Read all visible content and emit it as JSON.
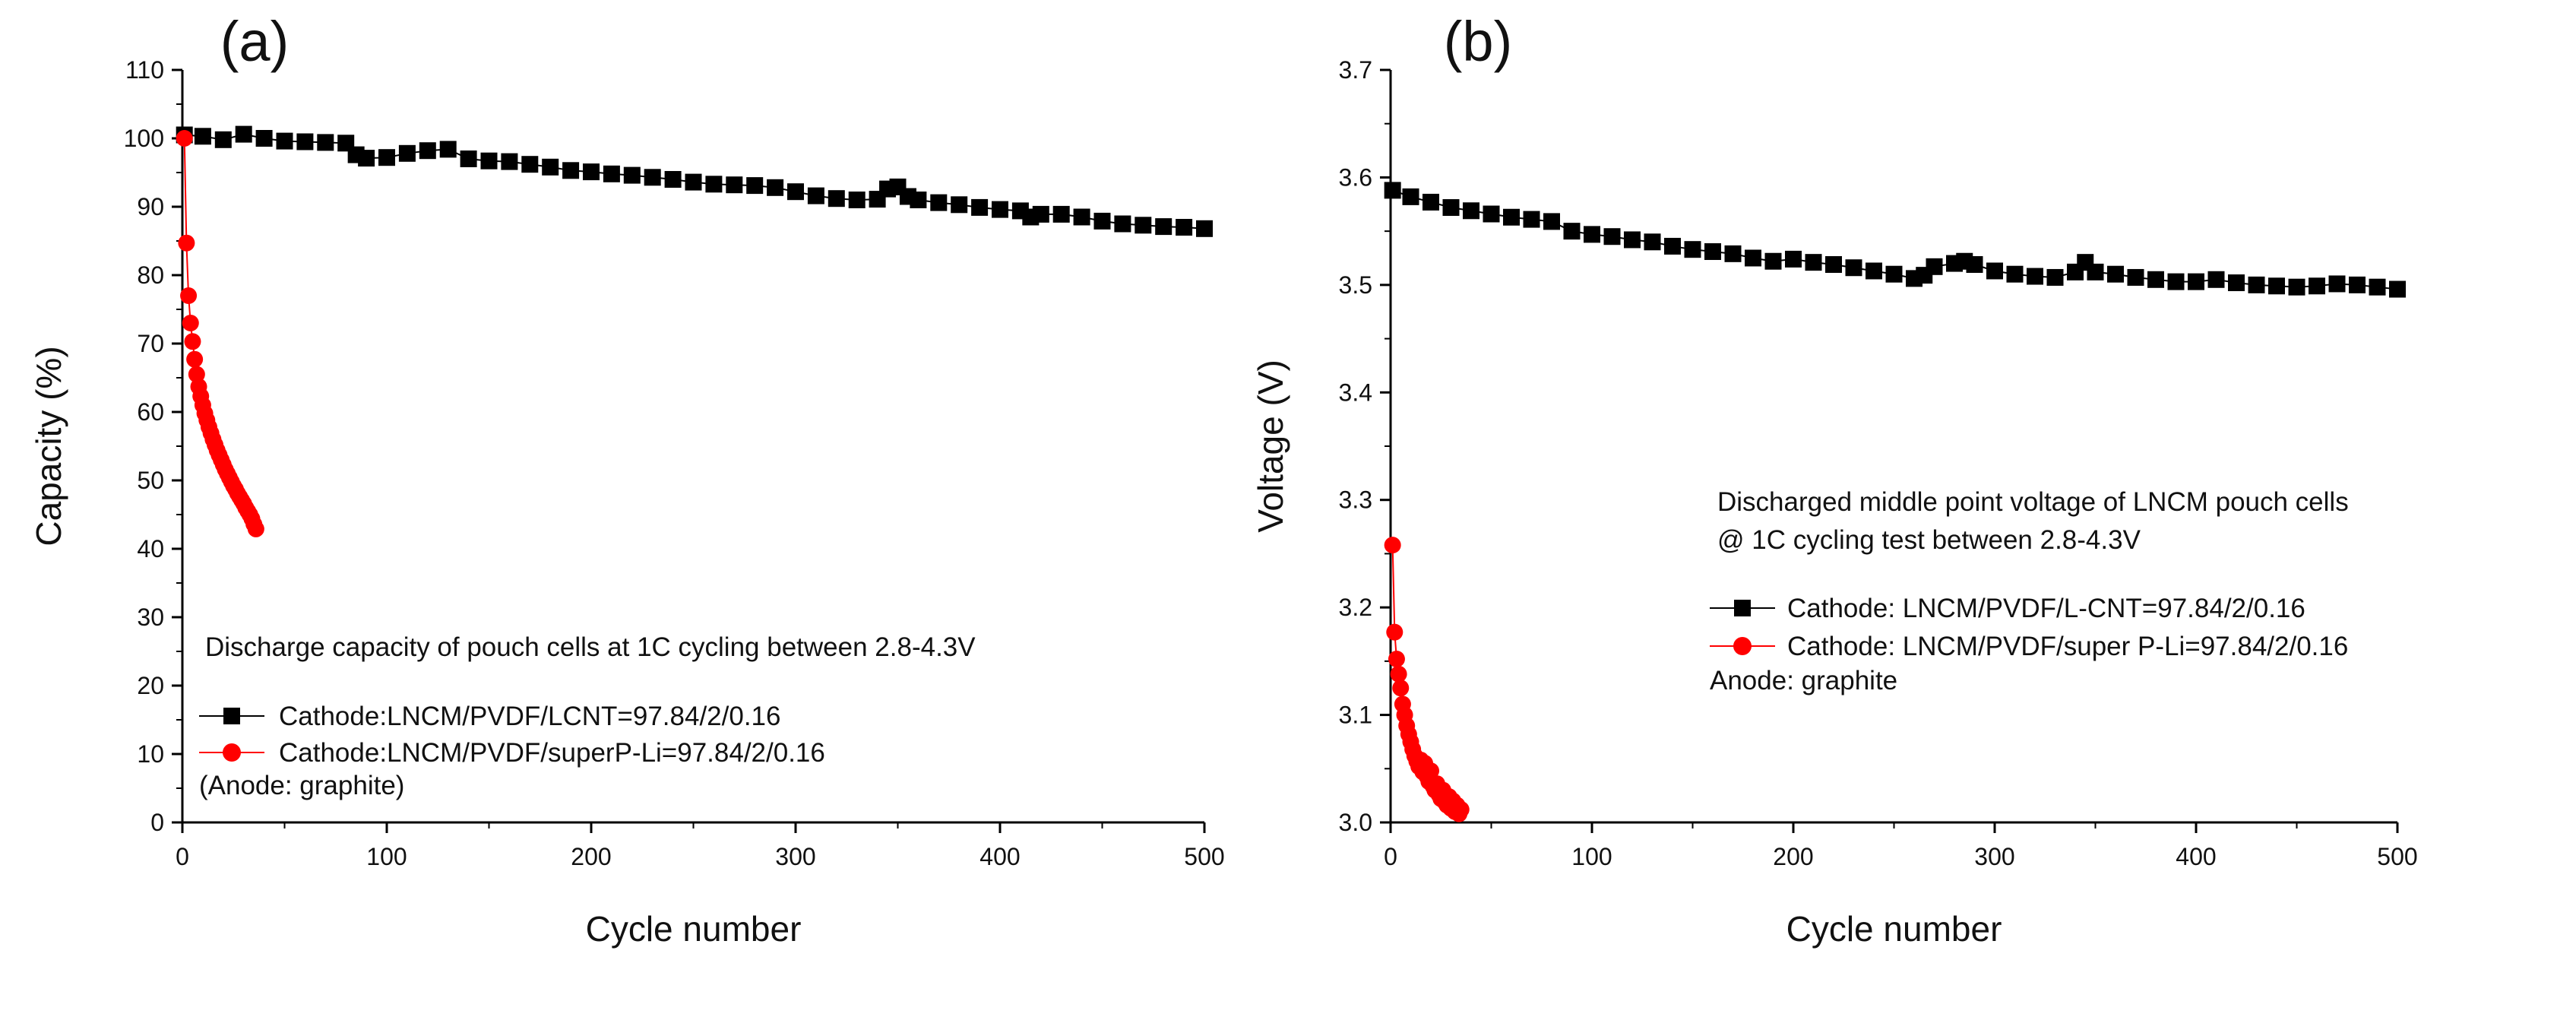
{
  "chart_data": [
    {
      "type": "scatter",
      "panel_label": "(a)",
      "xlabel": "Cycle number",
      "ylabel": "Capacity (%)",
      "xlim": [
        0,
        500
      ],
      "ylim": [
        0,
        110
      ],
      "x_ticks": [
        "0",
        "100",
        "200",
        "300",
        "400",
        "500"
      ],
      "y_ticks": [
        "0",
        "10",
        "20",
        "30",
        "40",
        "50",
        "60",
        "70",
        "80",
        "90",
        "100",
        "110"
      ],
      "annotation": "Discharge capacity of pouch cells at 1C cycling between 2.8-4.3V",
      "anode_note": "(Anode: graphite)",
      "series": [
        {
          "name": "Cathode:LNCM/PVDF/LCNT=97.84/2/0.16",
          "color": "#000000",
          "marker": "square",
          "x": [
            1,
            10,
            20,
            30,
            40,
            50,
            60,
            70,
            80,
            85,
            90,
            100,
            110,
            120,
            130,
            140,
            150,
            160,
            170,
            180,
            190,
            200,
            210,
            220,
            230,
            240,
            250,
            260,
            270,
            280,
            290,
            300,
            310,
            320,
            330,
            340,
            345,
            350,
            355,
            360,
            370,
            380,
            390,
            400,
            410,
            415,
            420,
            430,
            440,
            450,
            460,
            470,
            480,
            490,
            500
          ],
          "values": [
            100.5,
            100.3,
            99.8,
            100.6,
            100.0,
            99.6,
            99.5,
            99.4,
            99.3,
            97.6,
            97.1,
            97.2,
            97.8,
            98.2,
            98.4,
            97.0,
            96.7,
            96.6,
            96.2,
            95.8,
            95.3,
            95.1,
            94.8,
            94.6,
            94.3,
            94.0,
            93.6,
            93.3,
            93.2,
            93.1,
            92.8,
            92.2,
            91.6,
            91.2,
            91.0,
            91.1,
            92.6,
            92.9,
            91.5,
            91.0,
            90.6,
            90.3,
            89.9,
            89.6,
            89.4,
            88.5,
            88.9,
            88.9,
            88.5,
            87.9,
            87.5,
            87.3,
            87.1,
            87.0,
            86.8
          ]
        },
        {
          "name": "Cathode:LNCM/PVDF/superP-Li=97.84/2/0.16",
          "color": "#ff0000",
          "marker": "circle",
          "x": [
            1,
            2,
            3,
            4,
            5,
            6,
            7,
            8,
            9,
            10,
            11,
            12,
            13,
            14,
            15,
            16,
            17,
            18,
            19,
            20,
            21,
            22,
            23,
            24,
            25,
            26,
            27,
            28,
            29,
            30,
            31,
            32,
            33,
            34,
            35,
            36
          ],
          "values": [
            100.0,
            84.7,
            77.0,
            73.0,
            70.3,
            67.7,
            65.5,
            63.7,
            62.3,
            61.0,
            59.8,
            58.8,
            57.8,
            56.9,
            56.0,
            55.2,
            54.4,
            53.7,
            53.0,
            52.3,
            51.6,
            51.0,
            50.4,
            49.8,
            49.2,
            48.7,
            48.1,
            47.6,
            47.1,
            46.6,
            46.0,
            45.5,
            45.0,
            44.4,
            43.6,
            42.9
          ]
        }
      ]
    },
    {
      "type": "scatter",
      "panel_label": "(b)",
      "xlabel": "Cycle number",
      "ylabel": "Voltage (V)",
      "xlim": [
        0,
        500
      ],
      "ylim": [
        3.0,
        3.7
      ],
      "x_ticks": [
        "0",
        "100",
        "200",
        "300",
        "400",
        "500"
      ],
      "y_ticks": [
        "3.0",
        "3.1",
        "3.2",
        "3.3",
        "3.4",
        "3.5",
        "3.6",
        "3.7"
      ],
      "annotation_line1": "Discharged middle point voltage of LNCM pouch cells",
      "annotation_line2": "@ 1C cycling test between 2.8-4.3V",
      "anode_note": "Anode: graphite",
      "series": [
        {
          "name": "Cathode: LNCM/PVDF/L-CNT=97.84/2/0.16",
          "color": "#000000",
          "marker": "square",
          "x": [
            1,
            10,
            20,
            30,
            40,
            50,
            60,
            70,
            80,
            90,
            100,
            110,
            120,
            130,
            140,
            150,
            160,
            170,
            180,
            190,
            200,
            210,
            220,
            230,
            240,
            250,
            260,
            265,
            270,
            280,
            285,
            290,
            300,
            310,
            320,
            330,
            340,
            345,
            350,
            360,
            370,
            380,
            390,
            400,
            410,
            420,
            430,
            440,
            450,
            460,
            470,
            480,
            490,
            500
          ],
          "values": [
            3.588,
            3.582,
            3.577,
            3.572,
            3.569,
            3.566,
            3.563,
            3.561,
            3.559,
            3.55,
            3.547,
            3.545,
            3.542,
            3.54,
            3.536,
            3.533,
            3.531,
            3.529,
            3.525,
            3.522,
            3.524,
            3.521,
            3.519,
            3.516,
            3.513,
            3.51,
            3.506,
            3.509,
            3.517,
            3.52,
            3.522,
            3.519,
            3.513,
            3.51,
            3.508,
            3.507,
            3.512,
            3.521,
            3.512,
            3.51,
            3.507,
            3.505,
            3.503,
            3.503,
            3.505,
            3.502,
            3.5,
            3.499,
            3.498,
            3.499,
            3.501,
            3.5,
            3.498,
            3.496
          ]
        },
        {
          "name": "Cathode: LNCM/PVDF/super P-Li=97.84/2/0.16",
          "color": "#ff0000",
          "marker": "circle",
          "x": [
            1,
            2,
            3,
            4,
            5,
            6,
            7,
            8,
            9,
            10,
            11,
            12,
            13,
            14,
            15,
            16,
            17,
            18,
            19,
            20,
            21,
            22,
            23,
            24,
            25,
            26,
            27,
            28,
            29,
            30,
            31,
            32,
            33,
            34,
            35
          ],
          "values": [
            3.258,
            3.177,
            3.152,
            3.138,
            3.125,
            3.11,
            3.1,
            3.09,
            3.082,
            3.075,
            3.068,
            3.062,
            3.057,
            3.052,
            3.058,
            3.047,
            3.055,
            3.043,
            3.038,
            3.048,
            3.034,
            3.03,
            3.036,
            3.026,
            3.022,
            3.03,
            3.019,
            3.016,
            3.024,
            3.013,
            3.02,
            3.01,
            3.016,
            3.008,
            3.012
          ]
        }
      ]
    }
  ]
}
